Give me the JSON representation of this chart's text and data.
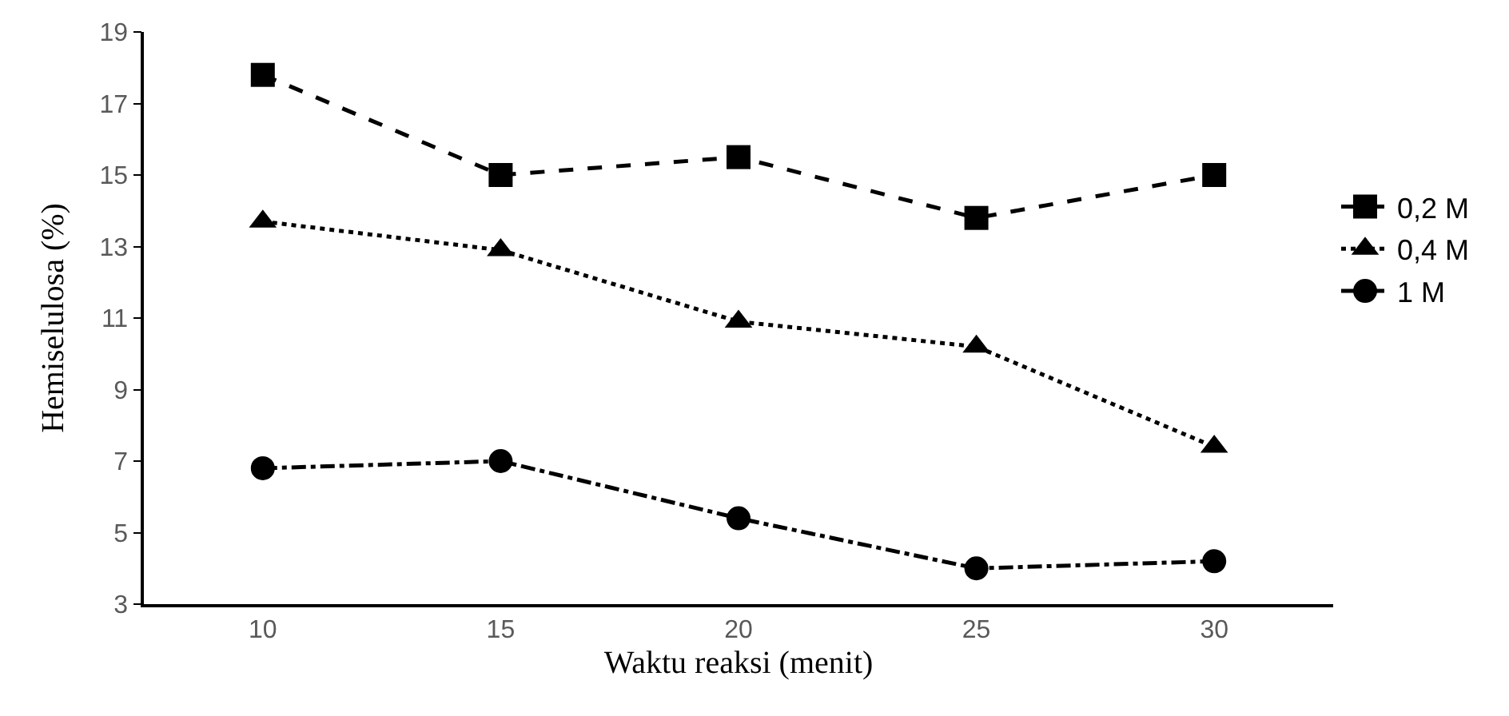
{
  "chart_data": {
    "type": "line",
    "xlabel": "Waktu reaksi (menit)",
    "ylabel": "Hemiselulosa (%)",
    "categories": [
      "10",
      "15",
      "20",
      "25",
      "30"
    ],
    "series": [
      {
        "name": "0,2 M",
        "color": "#000000",
        "marker": "square",
        "line_style": "dashed",
        "values": [
          17.8,
          15.0,
          15.5,
          13.8,
          15.0
        ]
      },
      {
        "name": "0,4 M",
        "color": "#000000",
        "marker": "triangle",
        "line_style": "dotted",
        "values": [
          13.7,
          12.9,
          10.9,
          10.2,
          7.4
        ]
      },
      {
        "name": "1 M",
        "color": "#000000",
        "marker": "circle",
        "line_style": "dashdot",
        "values": [
          6.8,
          7.0,
          5.4,
          4.0,
          4.2
        ]
      }
    ],
    "ylim": [
      3,
      19
    ],
    "yticks": [
      3,
      5,
      7,
      9,
      11,
      13,
      15,
      17,
      19
    ],
    "grid": false,
    "legend": "right"
  }
}
